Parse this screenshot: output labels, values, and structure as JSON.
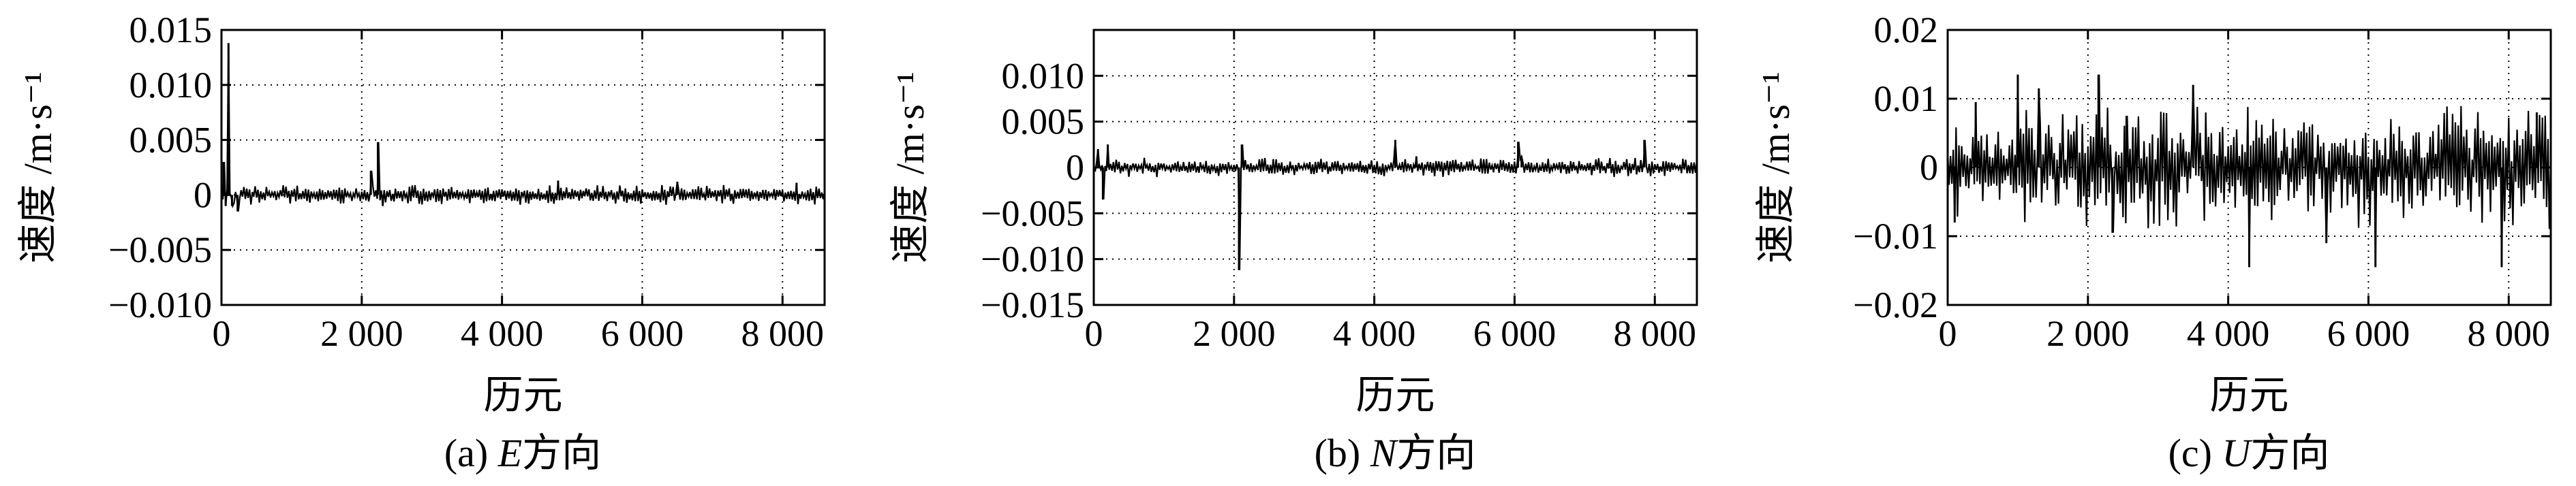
{
  "figure": {
    "panels": [
      {
        "caption_prefix": "(a) ",
        "caption_italic": "E",
        "caption_suffix": "方向",
        "xlabel": "历元",
        "ylabel": "速度 /m·s⁻¹"
      },
      {
        "caption_prefix": "(b) ",
        "caption_italic": "N",
        "caption_suffix": "方向",
        "xlabel": "历元",
        "ylabel": "速度 /m·s⁻¹"
      },
      {
        "caption_prefix": "(c)  ",
        "caption_italic": "U",
        "caption_suffix": "方向",
        "xlabel": "历元",
        "ylabel": "速度 /m·s⁻¹"
      }
    ]
  },
  "chart_data": [
    {
      "type": "line",
      "title": "",
      "xlabel": "历元",
      "ylabel": "速度 /m·s⁻¹",
      "xlim": [
        0,
        8600
      ],
      "ylim": [
        -0.01,
        0.015
      ],
      "grid": true,
      "x_ticks": [
        0,
        2000,
        4000,
        6000,
        8000
      ],
      "x_tick_labels": [
        "0",
        "2 000",
        "4 000",
        "6 000",
        "8 000"
      ],
      "y_ticks": [
        -0.01,
        -0.005,
        0,
        0.005,
        0.01,
        0.015
      ],
      "y_tick_labels": [
        "−0.010",
        "−0.005",
        "0",
        "0.005",
        "0.010",
        "0.015"
      ],
      "noise": {
        "base_amplitude": 0.0006,
        "seed": 11,
        "step": 20
      },
      "spikes": [
        [
          30,
          0.003
        ],
        [
          60,
          -0.001
        ],
        [
          100,
          0.0138
        ],
        [
          150,
          -0.001
        ],
        [
          230,
          -0.0015
        ],
        [
          2130,
          0.0022
        ],
        [
          2230,
          0.0048
        ],
        [
          2300,
          -0.001
        ],
        [
          4800,
          0.0013
        ],
        [
          6500,
          0.0012
        ],
        [
          8200,
          0.0011
        ]
      ]
    },
    {
      "type": "line",
      "title": "",
      "xlabel": "历元",
      "ylabel": "速度 /m·s⁻¹",
      "xlim": [
        0,
        8600
      ],
      "ylim": [
        -0.015,
        0.015
      ],
      "grid": true,
      "x_ticks": [
        0,
        2000,
        4000,
        6000,
        8000
      ],
      "x_tick_labels": [
        "0",
        "2 000",
        "4 000",
        "6 000",
        "8 000"
      ],
      "y_ticks": [
        -0.015,
        -0.01,
        -0.005,
        0,
        0.005,
        0.01
      ],
      "y_tick_labels": [
        "−0.015",
        "−0.010",
        "−0.005",
        "0",
        "0.005",
        "0.010"
      ],
      "noise": {
        "base_amplitude": 0.0007,
        "seed": 23,
        "step": 20
      },
      "spikes": [
        [
          60,
          0.002
        ],
        [
          130,
          -0.0035
        ],
        [
          200,
          0.0025
        ],
        [
          2070,
          -0.0112
        ],
        [
          2110,
          0.0025
        ],
        [
          4300,
          0.003
        ],
        [
          4600,
          0.0012
        ],
        [
          6050,
          0.0028
        ],
        [
          6100,
          0.0012
        ],
        [
          7850,
          0.003
        ]
      ]
    },
    {
      "type": "line",
      "title": "",
      "xlabel": "历元",
      "ylabel": "速度 /m·s⁻¹",
      "xlim": [
        0,
        8600
      ],
      "ylim": [
        -0.02,
        0.02
      ],
      "grid": true,
      "x_ticks": [
        0,
        2000,
        4000,
        6000,
        8000
      ],
      "x_tick_labels": [
        "0",
        "2 000",
        "4 000",
        "6 000",
        "8 000"
      ],
      "y_ticks": [
        -0.02,
        -0.01,
        0,
        0.01,
        0.02
      ],
      "y_tick_labels": [
        "−0.02",
        "−0.01",
        "0",
        "0.01",
        "0.02"
      ],
      "noise": {
        "base_amplitude": 0.006,
        "seed": 37,
        "step": 20
      },
      "spikes": [
        [
          100,
          -0.008
        ],
        [
          400,
          0.0095
        ],
        [
          1000,
          0.0135
        ],
        [
          1300,
          0.0115
        ],
        [
          2150,
          0.0135
        ],
        [
          2350,
          -0.0095
        ],
        [
          2550,
          0.0075
        ],
        [
          3500,
          0.012
        ],
        [
          4300,
          -0.0145
        ],
        [
          5400,
          -0.011
        ],
        [
          6100,
          -0.0145
        ],
        [
          7900,
          -0.0145
        ],
        [
          8400,
          0.008
        ]
      ]
    }
  ]
}
